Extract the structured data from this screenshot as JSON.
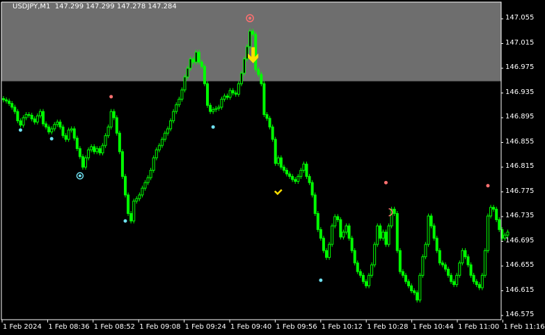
{
  "header": {
    "symbol": "USDJPY,M1",
    "ohlc": "147.299 147.299 147.278 147.284"
  },
  "colors": {
    "background": "#000000",
    "candle": "#00ff00",
    "zone": "#6e6e6e",
    "axis": "#ffffff",
    "sell_dot": "#ff7070",
    "buy_dot": "#6fe0f0",
    "arrow": "#ffe000"
  },
  "chart_data": {
    "type": "candlestick",
    "title": "",
    "ylim": [
      146.575,
      147.065
    ],
    "y_ticks": [
      "147.055",
      "147.015",
      "146.975",
      "146.935",
      "146.895",
      "146.855",
      "146.815",
      "146.775",
      "146.735",
      "146.695",
      "146.655",
      "146.615",
      "146.575"
    ],
    "x_ticks": [
      "1 Feb 2024",
      "1 Feb 08:36",
      "1 Feb 08:52",
      "1 Feb 09:08",
      "1 Feb 09:24",
      "1 Feb 09:40",
      "1 Feb 09:56",
      "1 Feb 10:12",
      "1 Feb 10:28",
      "1 Feb 10:44",
      "1 Feb 11:00",
      "1 Feb 11:16"
    ],
    "first_open": 146.926,
    "closes": [
      146.924,
      146.922,
      146.918,
      146.912,
      146.905,
      146.89,
      146.883,
      146.895,
      146.9,
      146.899,
      146.893,
      146.888,
      146.898,
      146.905,
      146.885,
      146.88,
      146.872,
      146.877,
      146.884,
      146.888,
      146.88,
      146.866,
      146.86,
      146.875,
      146.877,
      146.862,
      146.845,
      146.832,
      146.815,
      146.83,
      146.843,
      146.848,
      146.84,
      146.845,
      146.838,
      146.85,
      146.866,
      146.88,
      146.905,
      146.895,
      146.87,
      146.84,
      146.8,
      146.77,
      146.74,
      146.728,
      146.76,
      146.764,
      146.77,
      146.781,
      146.79,
      146.798,
      146.81,
      146.83,
      146.843,
      146.85,
      146.86,
      146.87,
      146.877,
      146.89,
      146.905,
      146.916,
      146.925,
      146.94,
      146.961,
      146.975,
      146.99,
      146.985,
      147.001,
      146.985,
      146.978,
      146.95,
      146.915,
      146.905,
      146.908,
      146.91,
      146.912,
      146.925,
      146.93,
      146.928,
      146.939,
      146.935,
      146.933,
      146.95,
      146.967,
      146.99,
      147.01,
      147.035,
      147.03,
      146.973,
      146.965,
      146.95,
      146.9,
      146.894,
      146.88,
      146.86,
      146.821,
      146.83,
      146.815,
      146.81,
      146.804,
      146.8,
      146.795,
      146.792,
      146.8,
      146.81,
      146.82,
      146.8,
      146.79,
      146.77,
      146.74,
      146.714,
      146.7,
      146.68,
      146.669,
      146.69,
      146.72,
      146.735,
      146.73,
      146.702,
      146.71,
      146.72,
      146.7,
      146.68,
      146.66,
      146.646,
      146.64,
      146.63,
      146.623,
      146.64,
      146.657,
      146.69,
      146.72,
      146.7,
      146.71,
      146.69,
      146.72,
      146.747,
      146.74,
      146.68,
      146.646,
      146.64,
      146.63,
      146.623,
      146.615,
      146.612,
      146.6,
      146.64,
      146.67,
      146.69,
      146.736,
      146.72,
      146.7,
      146.68,
      146.66,
      146.657,
      146.65,
      146.64,
      146.63,
      146.625,
      146.64,
      146.66,
      146.68,
      146.67,
      146.657,
      146.64,
      146.63,
      146.625,
      146.62,
      146.64,
      146.68,
      146.736,
      146.75,
      146.747,
      146.73,
      146.714,
      146.7,
      146.705,
      146.71
    ],
    "zone": {
      "from_price": 146.954,
      "to_price": 147.065
    },
    "markers": [
      {
        "type": "sell-dot",
        "bar": 38,
        "price": 146.929
      },
      {
        "type": "sell-dot",
        "bar": 135,
        "price": 146.79
      },
      {
        "type": "sell-dot",
        "bar": 171,
        "price": 146.785
      },
      {
        "type": "buy-dot",
        "bar": 6,
        "price": 146.875
      },
      {
        "type": "buy-dot",
        "bar": 17,
        "price": 146.861
      },
      {
        "type": "buy-dot",
        "bar": 43,
        "price": 146.728
      },
      {
        "type": "buy-dot",
        "bar": 74,
        "price": 146.88
      },
      {
        "type": "buy-dot",
        "bar": 112,
        "price": 146.632
      },
      {
        "type": "buy-ring",
        "bar": 27,
        "price": 146.801
      },
      {
        "type": "sell-ring",
        "bar": 87,
        "price": 147.065
      },
      {
        "type": "sell-half-ring",
        "bar": 136,
        "price": 146.742
      },
      {
        "type": "down-arrow",
        "bar": 88,
        "price": 146.99
      },
      {
        "type": "check-mark",
        "bar": 97,
        "price": 146.774
      }
    ]
  }
}
